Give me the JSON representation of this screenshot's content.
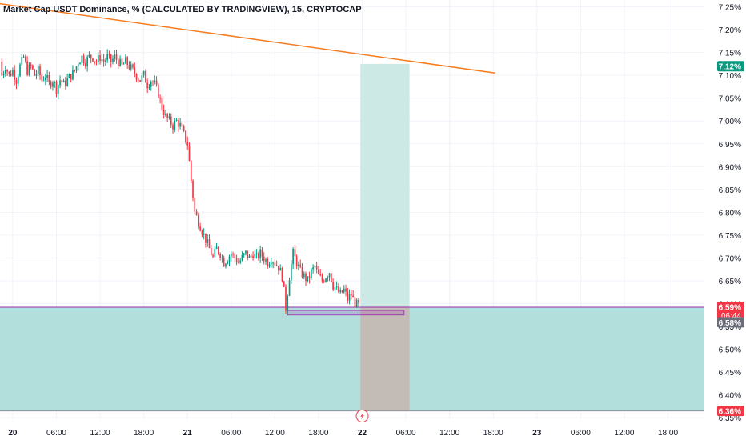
{
  "chart_data": {
    "type": "candlestick",
    "title": "Market Cap USDT Dominance, % (CALCULATED BY TRADINGVIEW), 15, CRYPTOCAP",
    "ylim": [
      6.345,
      7.265
    ],
    "y_ticks": [
      "7.25%",
      "7.20%",
      "7.15%",
      "7.10%",
      "7.05%",
      "7.00%",
      "6.95%",
      "6.90%",
      "6.85%",
      "6.80%",
      "6.75%",
      "6.70%",
      "6.65%",
      "6.60%",
      "6.55%",
      "6.50%",
      "6.45%",
      "6.40%",
      "6.35%"
    ],
    "y_tick_values": [
      7.25,
      7.2,
      7.15,
      7.1,
      7.05,
      7.0,
      6.95,
      6.9,
      6.85,
      6.8,
      6.75,
      6.7,
      6.65,
      6.6,
      6.55,
      6.5,
      6.45,
      6.4,
      6.35
    ],
    "x_ticks": [
      "20",
      "06:00",
      "12:00",
      "18:00",
      "21",
      "06:00",
      "12:00",
      "18:00",
      "22",
      "06:00",
      "12:00",
      "18:00",
      "23",
      "06:00",
      "12:00",
      "18:00"
    ],
    "x_tick_hours": [
      0,
      6,
      12,
      18,
      24,
      30,
      36,
      42,
      48,
      54,
      60,
      66,
      72,
      78,
      84,
      90
    ],
    "x_bold": [
      true,
      false,
      false,
      false,
      true,
      false,
      false,
      false,
      true,
      false,
      false,
      false,
      true,
      false,
      false,
      false
    ],
    "xlim_hours": [
      -1.75,
      95
    ],
    "price_series": [
      [
        -1.75,
        7.13
      ],
      [
        -1.5,
        7.1
      ],
      [
        -1.0,
        7.12
      ],
      [
        -0.5,
        7.1
      ],
      [
        0.0,
        7.11
      ],
      [
        0.5,
        7.09
      ],
      [
        1.0,
        7.12
      ],
      [
        1.5,
        7.14
      ],
      [
        2.0,
        7.11
      ],
      [
        2.5,
        7.12
      ],
      [
        3.0,
        7.1
      ],
      [
        3.5,
        7.11
      ],
      [
        4.0,
        7.09
      ],
      [
        4.5,
        7.1
      ],
      [
        5.0,
        7.08
      ],
      [
        5.5,
        7.09
      ],
      [
        6.0,
        7.07
      ],
      [
        6.5,
        7.09
      ],
      [
        7.0,
        7.08
      ],
      [
        7.5,
        7.09
      ],
      [
        8.0,
        7.1
      ],
      [
        8.5,
        7.11
      ],
      [
        9.0,
        7.13
      ],
      [
        9.5,
        7.14
      ],
      [
        10.0,
        7.13
      ],
      [
        10.5,
        7.14
      ],
      [
        11.0,
        7.14
      ],
      [
        11.5,
        7.13
      ],
      [
        12.0,
        7.14
      ],
      [
        12.5,
        7.13
      ],
      [
        13.0,
        7.14
      ],
      [
        13.5,
        7.13
      ],
      [
        14.0,
        7.14
      ],
      [
        14.5,
        7.13
      ],
      [
        15.0,
        7.12
      ],
      [
        15.5,
        7.13
      ],
      [
        16.0,
        7.12
      ],
      [
        16.5,
        7.11
      ],
      [
        17.0,
        7.1
      ],
      [
        17.5,
        7.09
      ],
      [
        18.0,
        7.1
      ],
      [
        18.5,
        7.08
      ],
      [
        19.0,
        7.09
      ],
      [
        19.5,
        7.08
      ],
      [
        20.0,
        7.06
      ],
      [
        20.5,
        7.03
      ],
      [
        21.0,
        7.01
      ],
      [
        21.5,
        7.0
      ],
      [
        22.0,
        6.99
      ],
      [
        22.5,
        7.0
      ],
      [
        23.0,
        6.99
      ],
      [
        23.5,
        6.97
      ],
      [
        24.0,
        6.95
      ],
      [
        24.5,
        6.87
      ],
      [
        25.0,
        6.8
      ],
      [
        25.5,
        6.78
      ],
      [
        26.0,
        6.76
      ],
      [
        26.5,
        6.74
      ],
      [
        27.0,
        6.72
      ],
      [
        27.5,
        6.7
      ],
      [
        28.0,
        6.72
      ],
      [
        28.5,
        6.71
      ],
      [
        29.0,
        6.69
      ],
      [
        29.5,
        6.7
      ],
      [
        30.0,
        6.71
      ],
      [
        30.5,
        6.7
      ],
      [
        31.0,
        6.69
      ],
      [
        31.5,
        6.7
      ],
      [
        32.0,
        6.71
      ],
      [
        32.5,
        6.7
      ],
      [
        33.0,
        6.71
      ],
      [
        33.5,
        6.7
      ],
      [
        34.0,
        6.71
      ],
      [
        34.5,
        6.7
      ],
      [
        35.0,
        6.69
      ],
      [
        35.5,
        6.7
      ],
      [
        36.0,
        6.69
      ],
      [
        36.5,
        6.68
      ],
      [
        37.0,
        6.66
      ],
      [
        37.5,
        6.59
      ],
      [
        38.0,
        6.66
      ],
      [
        38.5,
        6.71
      ],
      [
        39.0,
        6.69
      ],
      [
        39.5,
        6.67
      ],
      [
        40.0,
        6.66
      ],
      [
        40.5,
        6.65
      ],
      [
        41.0,
        6.67
      ],
      [
        41.5,
        6.68
      ],
      [
        42.0,
        6.66
      ],
      [
        42.5,
        6.65
      ],
      [
        43.0,
        6.66
      ],
      [
        43.5,
        6.67
      ],
      [
        44.0,
        6.64
      ],
      [
        44.5,
        6.63
      ],
      [
        45.0,
        6.62
      ],
      [
        45.5,
        6.63
      ],
      [
        46.0,
        6.61
      ],
      [
        46.5,
        6.62
      ],
      [
        47.0,
        6.6
      ],
      [
        47.5,
        6.595
      ]
    ],
    "trendline": {
      "start": [
        -1.75,
        7.257
      ],
      "end": [
        66.25,
        7.105
      ],
      "color": "#f57c1f"
    },
    "position": {
      "zone_low": 6.365,
      "zone_high": 6.592,
      "target_low": 6.592,
      "target_high": 7.125,
      "stop_low": 6.365,
      "stop_high": 6.592,
      "entry": 6.592,
      "time_start": 47.75,
      "time_end": 54.5,
      "target_color": "#cce9e6",
      "stop_color": "#c3bbb6",
      "zone_color": "#b2dfdb"
    },
    "range_box": {
      "time_start": 37.75,
      "time_end": 53.75,
      "low": 6.575,
      "high": 6.585
    },
    "markers": [
      {
        "label": "7.12%",
        "value": 7.12,
        "bg": "#089981",
        "fg": "#ffffff",
        "bold": true
      },
      {
        "label": "6.59%",
        "value": 6.593,
        "bg": "#f23645",
        "fg": "#ffffff",
        "bold": true
      },
      {
        "label": "06:44",
        "value": 6.575,
        "bg": "#f23645",
        "fg": "#ffffff",
        "bold": false
      },
      {
        "label": "6.58%",
        "value": 6.559,
        "bg": "#6a6d78",
        "fg": "#ffffff",
        "bold": true
      },
      {
        "label": "6.36%",
        "value": 6.365,
        "bg": "#f23645",
        "fg": "#ffffff",
        "bold": true
      }
    ],
    "colors": {
      "up": "#089981",
      "down": "#f23645",
      "entry_line": "#9c27b0",
      "grid": "#f0f3fa"
    }
  }
}
